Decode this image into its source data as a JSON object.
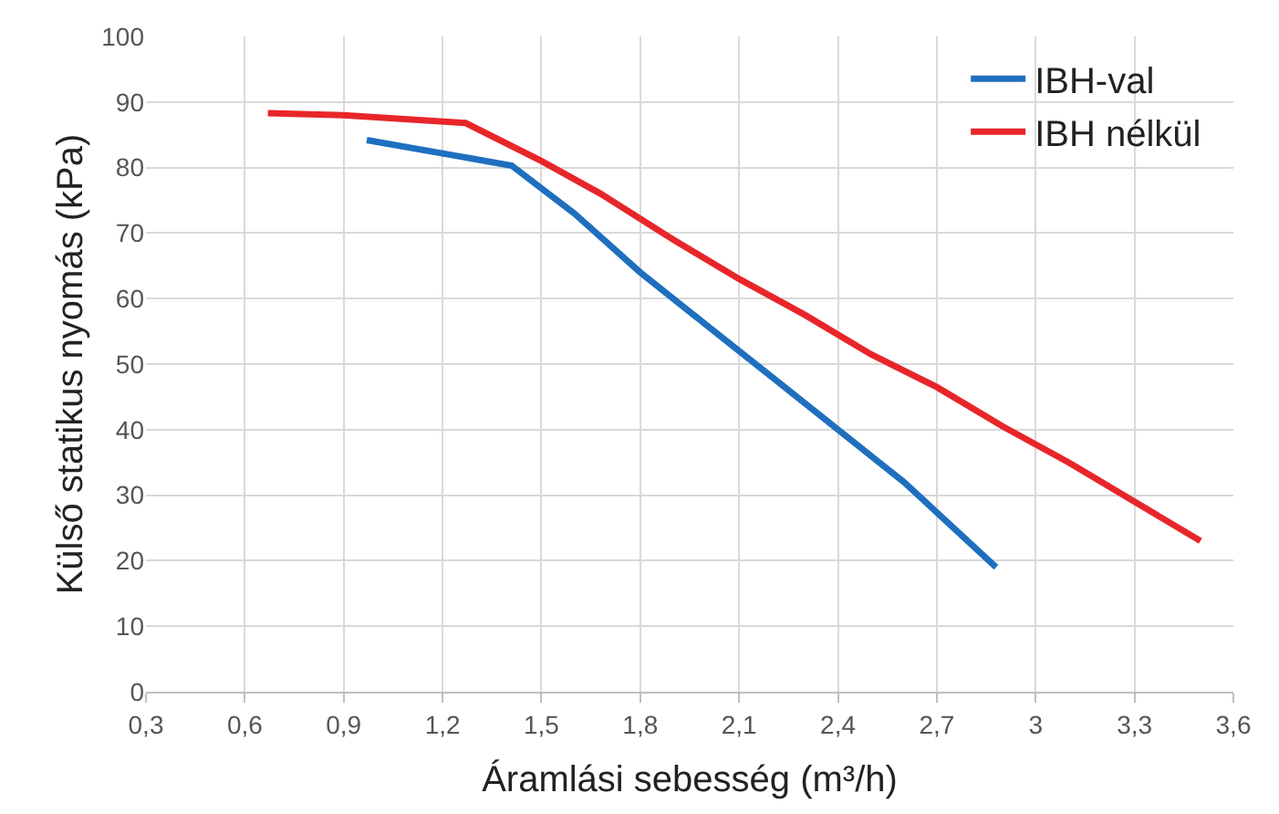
{
  "chart_data": {
    "type": "line",
    "xlabel": "Áramlási sebesség (m³/h)",
    "ylabel": "Külső statikus nyomás (kPa)",
    "xlim": [
      0.3,
      3.6
    ],
    "xticks": [
      {
        "value": 0.3,
        "label": "0,3"
      },
      {
        "value": 0.6,
        "label": "0,6"
      },
      {
        "value": 0.9,
        "label": "0,9"
      },
      {
        "value": 1.2,
        "label": "1,2"
      },
      {
        "value": 1.5,
        "label": "1,5"
      },
      {
        "value": 1.8,
        "label": "1,8"
      },
      {
        "value": 2.1,
        "label": "2,1"
      },
      {
        "value": 2.4,
        "label": "2,4"
      },
      {
        "value": 2.7,
        "label": "2,7"
      },
      {
        "value": 3,
        "label": "3"
      },
      {
        "value": 3.3,
        "label": "3,3"
      },
      {
        "value": 3.6,
        "label": "3,6"
      }
    ],
    "ylim": [
      0,
      100
    ],
    "yticks": [
      0,
      10,
      20,
      30,
      40,
      50,
      60,
      70,
      80,
      90,
      100
    ],
    "grid": true,
    "legend": "top right",
    "series": [
      {
        "name": "IBH-val",
        "color": "#1f6fbf",
        "x": [
          0.97,
          1.41,
          1.6,
          1.8,
          2.0,
          2.2,
          2.4,
          2.6,
          2.88
        ],
        "values": [
          84.2,
          80.3,
          73,
          64,
          56,
          48,
          40,
          32,
          19
        ]
      },
      {
        "name": "IBH nélkül",
        "color": "#e8262a",
        "x": [
          0.67,
          0.9,
          1.27,
          1.5,
          1.68,
          1.9,
          2.1,
          2.3,
          2.5,
          2.7,
          2.9,
          3.1,
          3.3,
          3.5
        ],
        "values": [
          88.3,
          88,
          86.8,
          81,
          76,
          69,
          63,
          57.5,
          51.5,
          46.5,
          40.5,
          35,
          29,
          23
        ]
      }
    ]
  }
}
